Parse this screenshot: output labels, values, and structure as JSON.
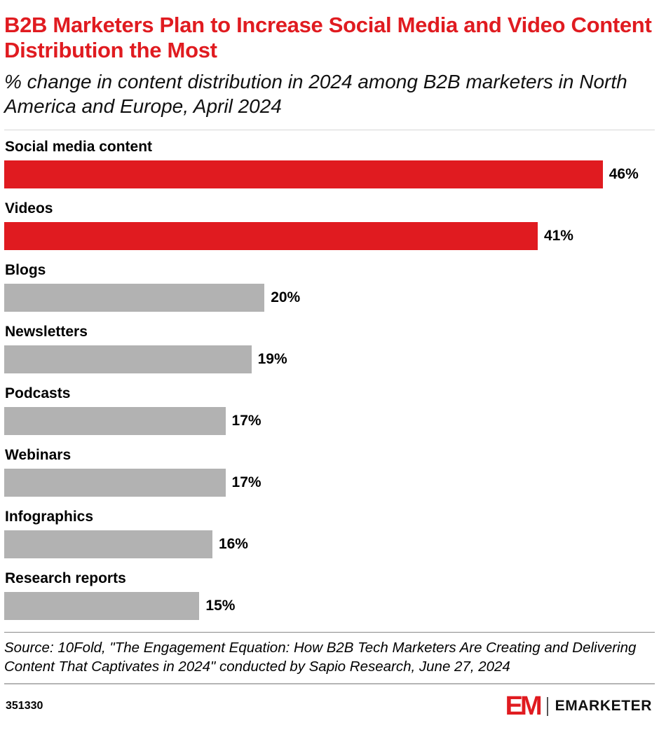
{
  "header": {
    "title": "B2B Marketers Plan to Increase Social Media and Video Content Distribution the Most",
    "subtitle": "% change in content distribution in 2024 among B2B marketers in North America and Europe, April 2024"
  },
  "chart_data": {
    "type": "bar",
    "orientation": "horizontal",
    "title": "B2B Marketers Plan to Increase Social Media and Video Content Distribution the Most",
    "categories": [
      "Social media content",
      "Videos",
      "Blogs",
      "Newsletters",
      "Podcasts",
      "Webinars",
      "Infographics",
      "Research reports"
    ],
    "values": [
      46,
      41,
      20,
      19,
      17,
      17,
      16,
      15
    ],
    "value_labels": [
      "46%",
      "41%",
      "20%",
      "19%",
      "17%",
      "17%",
      "16%",
      "15%"
    ],
    "xlim": [
      0,
      50
    ],
    "highlight_indexes": [
      0,
      1
    ],
    "highlight_color": "#e01b20",
    "bar_color": "#b2b2b2",
    "grid": false,
    "legend": "none"
  },
  "source": {
    "text": "Source: 10Fold, \"The Engagement Equation: How B2B Tech Marketers Are Creating and Delivering Content That Captivates in 2024\" conducted by Sapio Research, June 27, 2024"
  },
  "footer": {
    "chart_number": "351330",
    "logo_mark": "EM",
    "logo_text": "EMARKETER"
  }
}
